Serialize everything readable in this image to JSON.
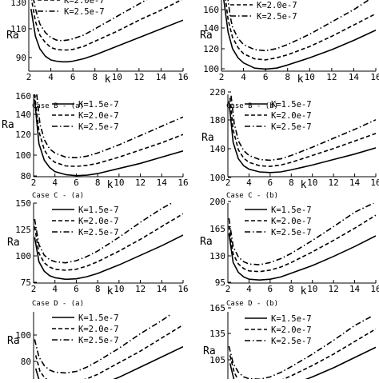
{
  "legend_entries": [
    "K=1.5e-7",
    "K=2.0e-7",
    "K=2.5e-7"
  ],
  "chart_data": [
    {
      "type": "line",
      "panel": "A-a",
      "caption": "",
      "xlabel": "k",
      "ylabel": "Ra",
      "xlim": [
        2,
        16
      ],
      "ylim": [
        70,
        140
      ],
      "xticks": [
        "2",
        "4",
        "6",
        "8",
        "10",
        "12",
        "14",
        "16"
      ],
      "yticks": [
        "90",
        "110",
        "130"
      ],
      "legend": {
        "entries": [
          {
            "label": "K=2.0e-7",
            "dash": "dashed"
          },
          {
            "label": "K=2.5e-7",
            "dash": "dashdot"
          }
        ]
      },
      "series": [
        {
          "name": "K=1.5e-7",
          "dash": "solid",
          "x": [
            2.2,
            2.6,
            3,
            3.5,
            4,
            4.5,
            5,
            5.5,
            6,
            7,
            8,
            10,
            12,
            14,
            16
          ],
          "y": [
            120,
            98,
            88,
            82,
            79,
            78,
            77.5,
            77.5,
            78,
            80,
            83,
            90,
            97,
            104,
            111
          ]
        },
        {
          "name": "K=2.0e-7",
          "dash": "dashed",
          "x": [
            2.2,
            2.6,
            3,
            3.5,
            4,
            4.5,
            5,
            5.5,
            6,
            7,
            8,
            10,
            12,
            14,
            16
          ],
          "y": [
            130,
            110,
            99,
            93,
            89,
            87.5,
            87,
            87,
            87.5,
            90,
            94,
            102,
            111,
            119,
            128
          ]
        },
        {
          "name": "K=2.5e-7",
          "dash": "dashdot",
          "x": [
            2.2,
            2.6,
            3,
            3.5,
            4,
            4.5,
            5,
            5.5,
            6,
            7,
            8,
            10,
            12,
            14,
            16
          ],
          "y": [
            138,
            120,
            108,
            101,
            97,
            95,
            94.5,
            95,
            96,
            99,
            104,
            114,
            124,
            134,
            143
          ]
        }
      ]
    },
    {
      "type": "line",
      "panel": "A-b",
      "caption": "",
      "xlabel": "k",
      "ylabel": "Ra",
      "xlim": [
        2,
        16
      ],
      "ylim": [
        100,
        185
      ],
      "xticks": [
        "2",
        "4",
        "6",
        "8",
        "10",
        "12",
        "14",
        "16"
      ],
      "yticks": [
        "100",
        "120",
        "140",
        "160",
        "180"
      ],
      "legend": {
        "entries": [
          {
            "label": "K=2.0e-7",
            "dash": "dashed"
          },
          {
            "label": "K=2.5e-7",
            "dash": "dashdot"
          }
        ]
      },
      "series": [
        {
          "name": "K=1.5e-7",
          "dash": "solid",
          "x": [
            2.2,
            2.6,
            3,
            3.5,
            4,
            5,
            6,
            7,
            8,
            10,
            12,
            14,
            16
          ],
          "y": [
            170,
            138,
            122,
            113,
            108,
            103,
            102,
            103,
            106,
            113,
            121,
            130,
            140
          ]
        },
        {
          "name": "K=2.0e-7",
          "dash": "dashed",
          "x": [
            2.2,
            2.6,
            3,
            3.5,
            4,
            5,
            6,
            7,
            8,
            10,
            12,
            14,
            16
          ],
          "y": [
            185,
            150,
            133,
            123,
            117,
            112,
            111,
            113,
            116,
            124,
            134,
            145,
            156
          ]
        },
        {
          "name": "K=2.5e-7",
          "dash": "dashdot",
          "x": [
            2.4,
            2.8,
            3,
            3.5,
            4,
            5,
            6,
            7,
            8,
            10,
            12,
            14,
            16
          ],
          "y": [
            185,
            153,
            143,
            132,
            126,
            121,
            120,
            122,
            126,
            136,
            148,
            160,
            174
          ]
        }
      ]
    },
    {
      "type": "line",
      "panel": "B-a",
      "caption": "Case B - (a)",
      "xlabel": "k",
      "ylabel": "Ra",
      "xlim": [
        2,
        16
      ],
      "ylim": [
        80,
        160
      ],
      "xticks": [
        "2",
        "4",
        "6",
        "8",
        "10",
        "12",
        "14",
        "16"
      ],
      "yticks": [
        "80",
        "100",
        "120",
        "140",
        "160"
      ],
      "legend": {
        "entries": [
          {
            "label": "K=1.5e-7",
            "dash": "solid"
          },
          {
            "label": "K=2.0e-7",
            "dash": "dashed"
          },
          {
            "label": "K=2.5e-7",
            "dash": "dashdot"
          }
        ]
      },
      "series": [
        {
          "name": "K=1.5e-7",
          "dash": "solid",
          "x": [
            2.1,
            2.5,
            3,
            3.5,
            4,
            5,
            6,
            7,
            8,
            10,
            12,
            14,
            16
          ],
          "y": [
            155,
            112,
            96,
            89,
            85,
            82,
            81,
            81.5,
            83,
            88,
            93,
            99,
            105
          ]
        },
        {
          "name": "K=2.0e-7",
          "dash": "dashed",
          "x": [
            2.1,
            2.5,
            3,
            3.5,
            4,
            5,
            6,
            7,
            8,
            10,
            12,
            14,
            16
          ],
          "y": [
            160,
            124,
            106,
            98,
            94,
            90.5,
            90,
            91,
            93,
            99,
            106,
            113,
            121
          ]
        },
        {
          "name": "K=2.5e-7",
          "dash": "dashdot",
          "x": [
            2.3,
            2.6,
            3,
            3.5,
            4,
            5,
            6,
            7,
            8,
            10,
            12,
            14,
            16
          ],
          "y": [
            160,
            131,
            116,
            107,
            103,
            99,
            98.5,
            100,
            103,
            111,
            120,
            129,
            138
          ]
        }
      ]
    },
    {
      "type": "line",
      "panel": "B-b",
      "caption": "Case B - (b)",
      "xlabel": "k",
      "ylabel": "Ra",
      "xlim": [
        2,
        16
      ],
      "ylim": [
        100,
        220
      ],
      "xticks": [
        "2",
        "4",
        "6",
        "8",
        "10",
        "12",
        "14",
        "16"
      ],
      "yticks": [
        "100",
        "140",
        "180",
        "220"
      ],
      "legend": {
        "entries": [
          {
            "label": "K=1.5e-7",
            "dash": "solid"
          },
          {
            "label": "K=2.0e-7",
            "dash": "dashed"
          },
          {
            "label": "K=2.5e-7",
            "dash": "dashdot"
          }
        ]
      },
      "series": [
        {
          "name": "K=1.5e-7",
          "dash": "solid",
          "x": [
            2.1,
            2.5,
            3,
            3.5,
            4,
            5,
            6,
            7,
            8,
            10,
            12,
            14,
            16
          ],
          "y": [
            210,
            150,
            126,
            116,
            111,
            107,
            106,
            107,
            110,
            117,
            125,
            133,
            142
          ]
        },
        {
          "name": "K=2.0e-7",
          "dash": "dashed",
          "x": [
            2.2,
            2.5,
            3,
            3.5,
            4,
            5,
            6,
            7,
            8,
            10,
            12,
            14,
            16
          ],
          "y": [
            215,
            168,
            139,
            127,
            121,
            116,
            115,
            117,
            121,
            131,
            141,
            152,
            163
          ]
        },
        {
          "name": "K=2.5e-7",
          "dash": "dashdot",
          "x": [
            2.3,
            2.6,
            3,
            3.5,
            4,
            5,
            6,
            7,
            8,
            10,
            12,
            14,
            16
          ],
          "y": [
            218,
            178,
            152,
            138,
            131,
            125,
            124,
            126,
            131,
            143,
            156,
            169,
            183
          ]
        }
      ]
    },
    {
      "type": "line",
      "panel": "C-a",
      "caption": "Case C - (a)",
      "xlabel": "k",
      "ylabel": "Ra",
      "xlim": [
        2,
        16
      ],
      "ylim": [
        75,
        150
      ],
      "xticks": [
        "2",
        "4",
        "6",
        "8",
        "10",
        "12",
        "14",
        "16"
      ],
      "yticks": [
        "75",
        "100",
        "125",
        "150"
      ],
      "legend": {
        "entries": [
          {
            "label": "K=1.5e-7",
            "dash": "solid"
          },
          {
            "label": "K=2.0e-7",
            "dash": "dashed"
          },
          {
            "label": "K=2.5e-7",
            "dash": "dashdot"
          }
        ]
      },
      "series": [
        {
          "name": "K=1.5e-7",
          "dash": "solid",
          "x": [
            2.1,
            2.5,
            3,
            3.5,
            4,
            5,
            6,
            7,
            8,
            10,
            12,
            14,
            16
          ],
          "y": [
            118,
            95,
            86,
            82,
            80,
            78.5,
            79,
            81,
            84,
            92,
            101,
            110,
            120
          ]
        },
        {
          "name": "K=2.0e-7",
          "dash": "dashed",
          "x": [
            2.1,
            2.5,
            3,
            3.5,
            4,
            5,
            6,
            7,
            8,
            10,
            12,
            14,
            16
          ],
          "y": [
            128,
            103,
            94,
            90,
            88,
            87,
            88,
            91,
            95,
            105,
            116,
            128,
            140
          ]
        },
        {
          "name": "K=2.5e-7",
          "dash": "dashdot",
          "x": [
            2.1,
            2.5,
            3,
            3.5,
            4,
            5,
            6,
            7,
            8,
            10,
            12,
            14,
            15.3
          ],
          "y": [
            135,
            111,
            101,
            97,
            95,
            94,
            96,
            100,
            105,
            118,
            132,
            145,
            152
          ]
        }
      ]
    },
    {
      "type": "line",
      "panel": "C-b",
      "caption": "Case C - (b)",
      "xlabel": "k",
      "ylabel": "Ra",
      "xlim": [
        2,
        16
      ],
      "ylim": [
        95,
        200
      ],
      "xticks": [
        "2",
        "4",
        "6",
        "8",
        "10",
        "12",
        "14",
        "16"
      ],
      "yticks": [
        "95",
        "130",
        "165",
        "200"
      ],
      "legend": {
        "entries": [
          {
            "label": "K=1.5e-7",
            "dash": "solid"
          },
          {
            "label": "K=2.0e-7",
            "dash": "dashed"
          },
          {
            "label": "K=2.5e-7",
            "dash": "dashdot"
          }
        ]
      },
      "series": [
        {
          "name": "K=1.5e-7",
          "dash": "solid",
          "x": [
            2.1,
            2.5,
            3,
            3.5,
            4,
            5,
            6,
            7,
            8,
            10,
            12,
            14,
            16
          ],
          "y": [
            160,
            122,
            109,
            103,
            100,
            99,
            100,
            103,
            108,
            118,
            130,
            143,
            157
          ]
        },
        {
          "name": "K=2.0e-7",
          "dash": "dashed",
          "x": [
            2.1,
            2.5,
            3,
            3.5,
            4,
            5,
            6,
            7,
            8,
            10,
            12,
            14,
            16
          ],
          "y": [
            170,
            133,
            120,
            114,
            111,
            110,
            112,
            116,
            122,
            136,
            151,
            167,
            184
          ]
        },
        {
          "name": "K=2.5e-7",
          "dash": "dashdot",
          "x": [
            2.1,
            2.5,
            3,
            3.5,
            4,
            5,
            6,
            7,
            8,
            10,
            12,
            14,
            15.8
          ],
          "y": [
            180,
            143,
            129,
            123,
            120,
            119,
            122,
            127,
            134,
            151,
            169,
            188,
            200
          ]
        }
      ]
    },
    {
      "type": "line",
      "panel": "D-a",
      "caption": "Case D - (a)",
      "xlabel": "",
      "ylabel": "Ra",
      "xlim": [
        2,
        16
      ],
      "ylim": [
        70,
        125
      ],
      "xticks": [],
      "yticks": [
        "80",
        "100"
      ],
      "legend": {
        "entries": [
          {
            "label": "K=1.5e-7",
            "dash": "solid"
          },
          {
            "label": "K=2.0e-7",
            "dash": "dashed"
          },
          {
            "label": "K=2.5e-7",
            "dash": "dashdot"
          }
        ]
      },
      "series": [
        {
          "name": "K=1.5e-7",
          "dash": "solid",
          "x": [
            2.2,
            2.6,
            3,
            3.5,
            4,
            5,
            6,
            7,
            8,
            10,
            12,
            14,
            16
          ],
          "y": [
            86,
            76,
            72,
            69.5,
            68.5,
            68,
            69,
            71,
            74,
            80,
            87,
            94,
            101
          ]
        },
        {
          "name": "K=2.0e-7",
          "dash": "dashed",
          "x": [
            2.2,
            2.6,
            3,
            3.5,
            4,
            5,
            6,
            7,
            8,
            10,
            12,
            14,
            16
          ],
          "y": [
            95,
            84,
            80,
            77,
            76,
            75.5,
            76.5,
            79,
            82,
            90,
            98,
            107,
            116
          ]
        },
        {
          "name": "K=2.5e-7",
          "dash": "dashdot",
          "x": [
            2.1,
            2.5,
            3,
            3.5,
            4,
            5,
            6,
            7,
            8,
            10,
            12,
            14,
            14.8
          ],
          "y": [
            106,
            94,
            88,
            85,
            83.5,
            83,
            84,
            87,
            91,
            100,
            110,
            119,
            123
          ]
        }
      ]
    },
    {
      "type": "line",
      "panel": "D-b",
      "caption": "Case D - (b)",
      "xlabel": "",
      "ylabel": "Ra",
      "xlim": [
        2,
        16
      ],
      "ylim": [
        100,
        170
      ],
      "xticks": [],
      "yticks": [
        "105",
        "135",
        "165"
      ],
      "legend": {
        "entries": [
          {
            "label": "K=1.5e-7",
            "dash": "solid"
          },
          {
            "label": "K=2.0e-7",
            "dash": "dashed"
          },
          {
            "label": "K=2.5e-7",
            "dash": "dashdot"
          }
        ]
      },
      "series": [
        {
          "name": "K=1.5e-7",
          "dash": "solid",
          "x": [
            2.2,
            2.6,
            3,
            3.5,
            4,
            5,
            6,
            7,
            8,
            10,
            12,
            14,
            16
          ],
          "y": [
            125,
            110,
            104,
            101,
            100,
            99.5,
            100.5,
            103,
            106,
            113,
            121,
            130,
            139
          ]
        },
        {
          "name": "K=2.0e-7",
          "dash": "dashed",
          "x": [
            2.2,
            2.6,
            3,
            3.5,
            4,
            5,
            6,
            7,
            8,
            10,
            12,
            14,
            16
          ],
          "y": [
            132,
            117,
            110,
            107,
            105.5,
            105,
            106.5,
            110,
            114,
            123,
            133,
            144,
            155
          ]
        },
        {
          "name": "K=2.5e-7",
          "dash": "dashdot",
          "x": [
            2.1,
            2.5,
            3,
            3.5,
            4,
            5,
            6,
            7,
            8,
            10,
            12,
            14,
            15.6
          ],
          "y": [
            140,
            125,
            117,
            113,
            111.5,
            111,
            113,
            117,
            122,
            133,
            145,
            158,
            166
          ]
        }
      ]
    }
  ]
}
